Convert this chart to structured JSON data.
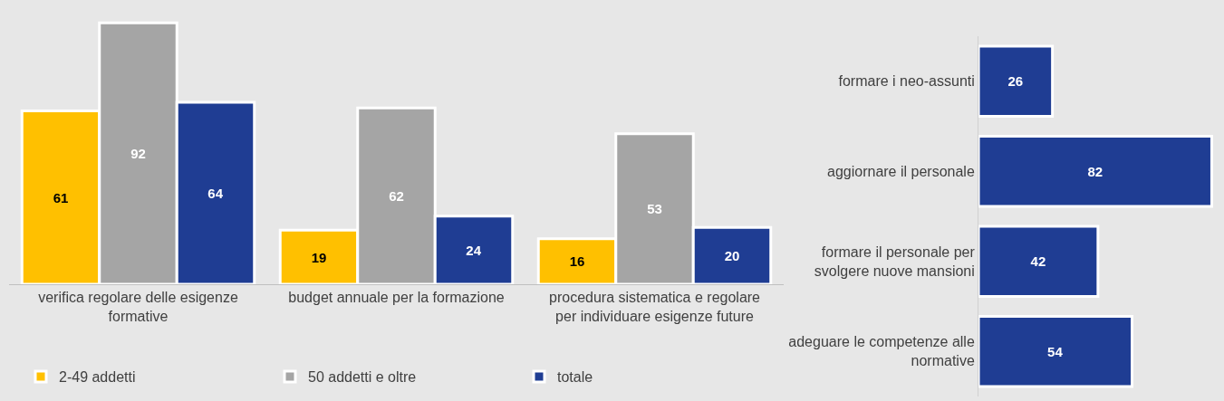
{
  "chart_data": [
    {
      "type": "bar",
      "categories": [
        "verifica regolare delle esigenze formative",
        "budget annuale per la formazione",
        "procedura sistematica e regolare per individuare esigenze future"
      ],
      "series": [
        {
          "name": "2-49 addetti",
          "color": "#ffc000",
          "values": [
            61,
            19,
            16
          ]
        },
        {
          "name": "50 addetti e oltre",
          "color": "#a5a5a5",
          "values": [
            92,
            62,
            53
          ]
        },
        {
          "name": "totale",
          "color": "#1f3d93",
          "values": [
            64,
            24,
            20
          ]
        }
      ],
      "data_labels": true,
      "legend": "bottom",
      "grid": false,
      "tick_labels": "x"
    },
    {
      "type": "bar",
      "orientation": "horizontal",
      "categories": [
        "formare i neo-assunti",
        "aggiornare il personale",
        "formare il personale per svolgere nuove mansioni",
        "adeguare le competenze alle normative"
      ],
      "series": [
        {
          "color": "#1f3d93",
          "values": [
            26,
            82,
            42,
            54
          ]
        }
      ],
      "data_labels": true,
      "legend": false,
      "grid": false,
      "tick_labels": "y"
    }
  ]
}
